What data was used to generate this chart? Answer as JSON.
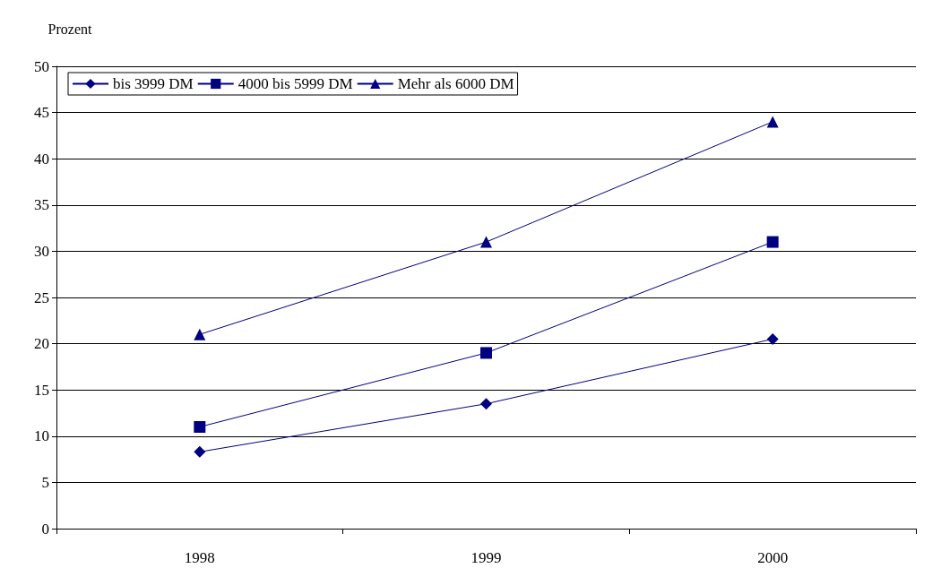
{
  "chart_data": {
    "type": "line",
    "ylabel": "Prozent",
    "categories": [
      "1998",
      "1999",
      "2000"
    ],
    "series": [
      {
        "name": "bis 3999 DM",
        "color": "#000080",
        "marker": "diamond",
        "values": [
          8.3,
          13.5,
          20.5
        ]
      },
      {
        "name": "4000 bis 5999 DM",
        "color": "#000080",
        "marker": "square",
        "values": [
          11,
          19,
          31
        ]
      },
      {
        "name": "Mehr als 6000 DM",
        "color": "#000080",
        "marker": "triangle",
        "values": [
          21,
          31,
          44
        ]
      }
    ],
    "ylim": [
      0,
      50
    ],
    "yticks": [
      0,
      5,
      10,
      15,
      20,
      25,
      30,
      35,
      40,
      45,
      50
    ],
    "grid": "y",
    "legend": "top left",
    "line_style": "solid"
  }
}
